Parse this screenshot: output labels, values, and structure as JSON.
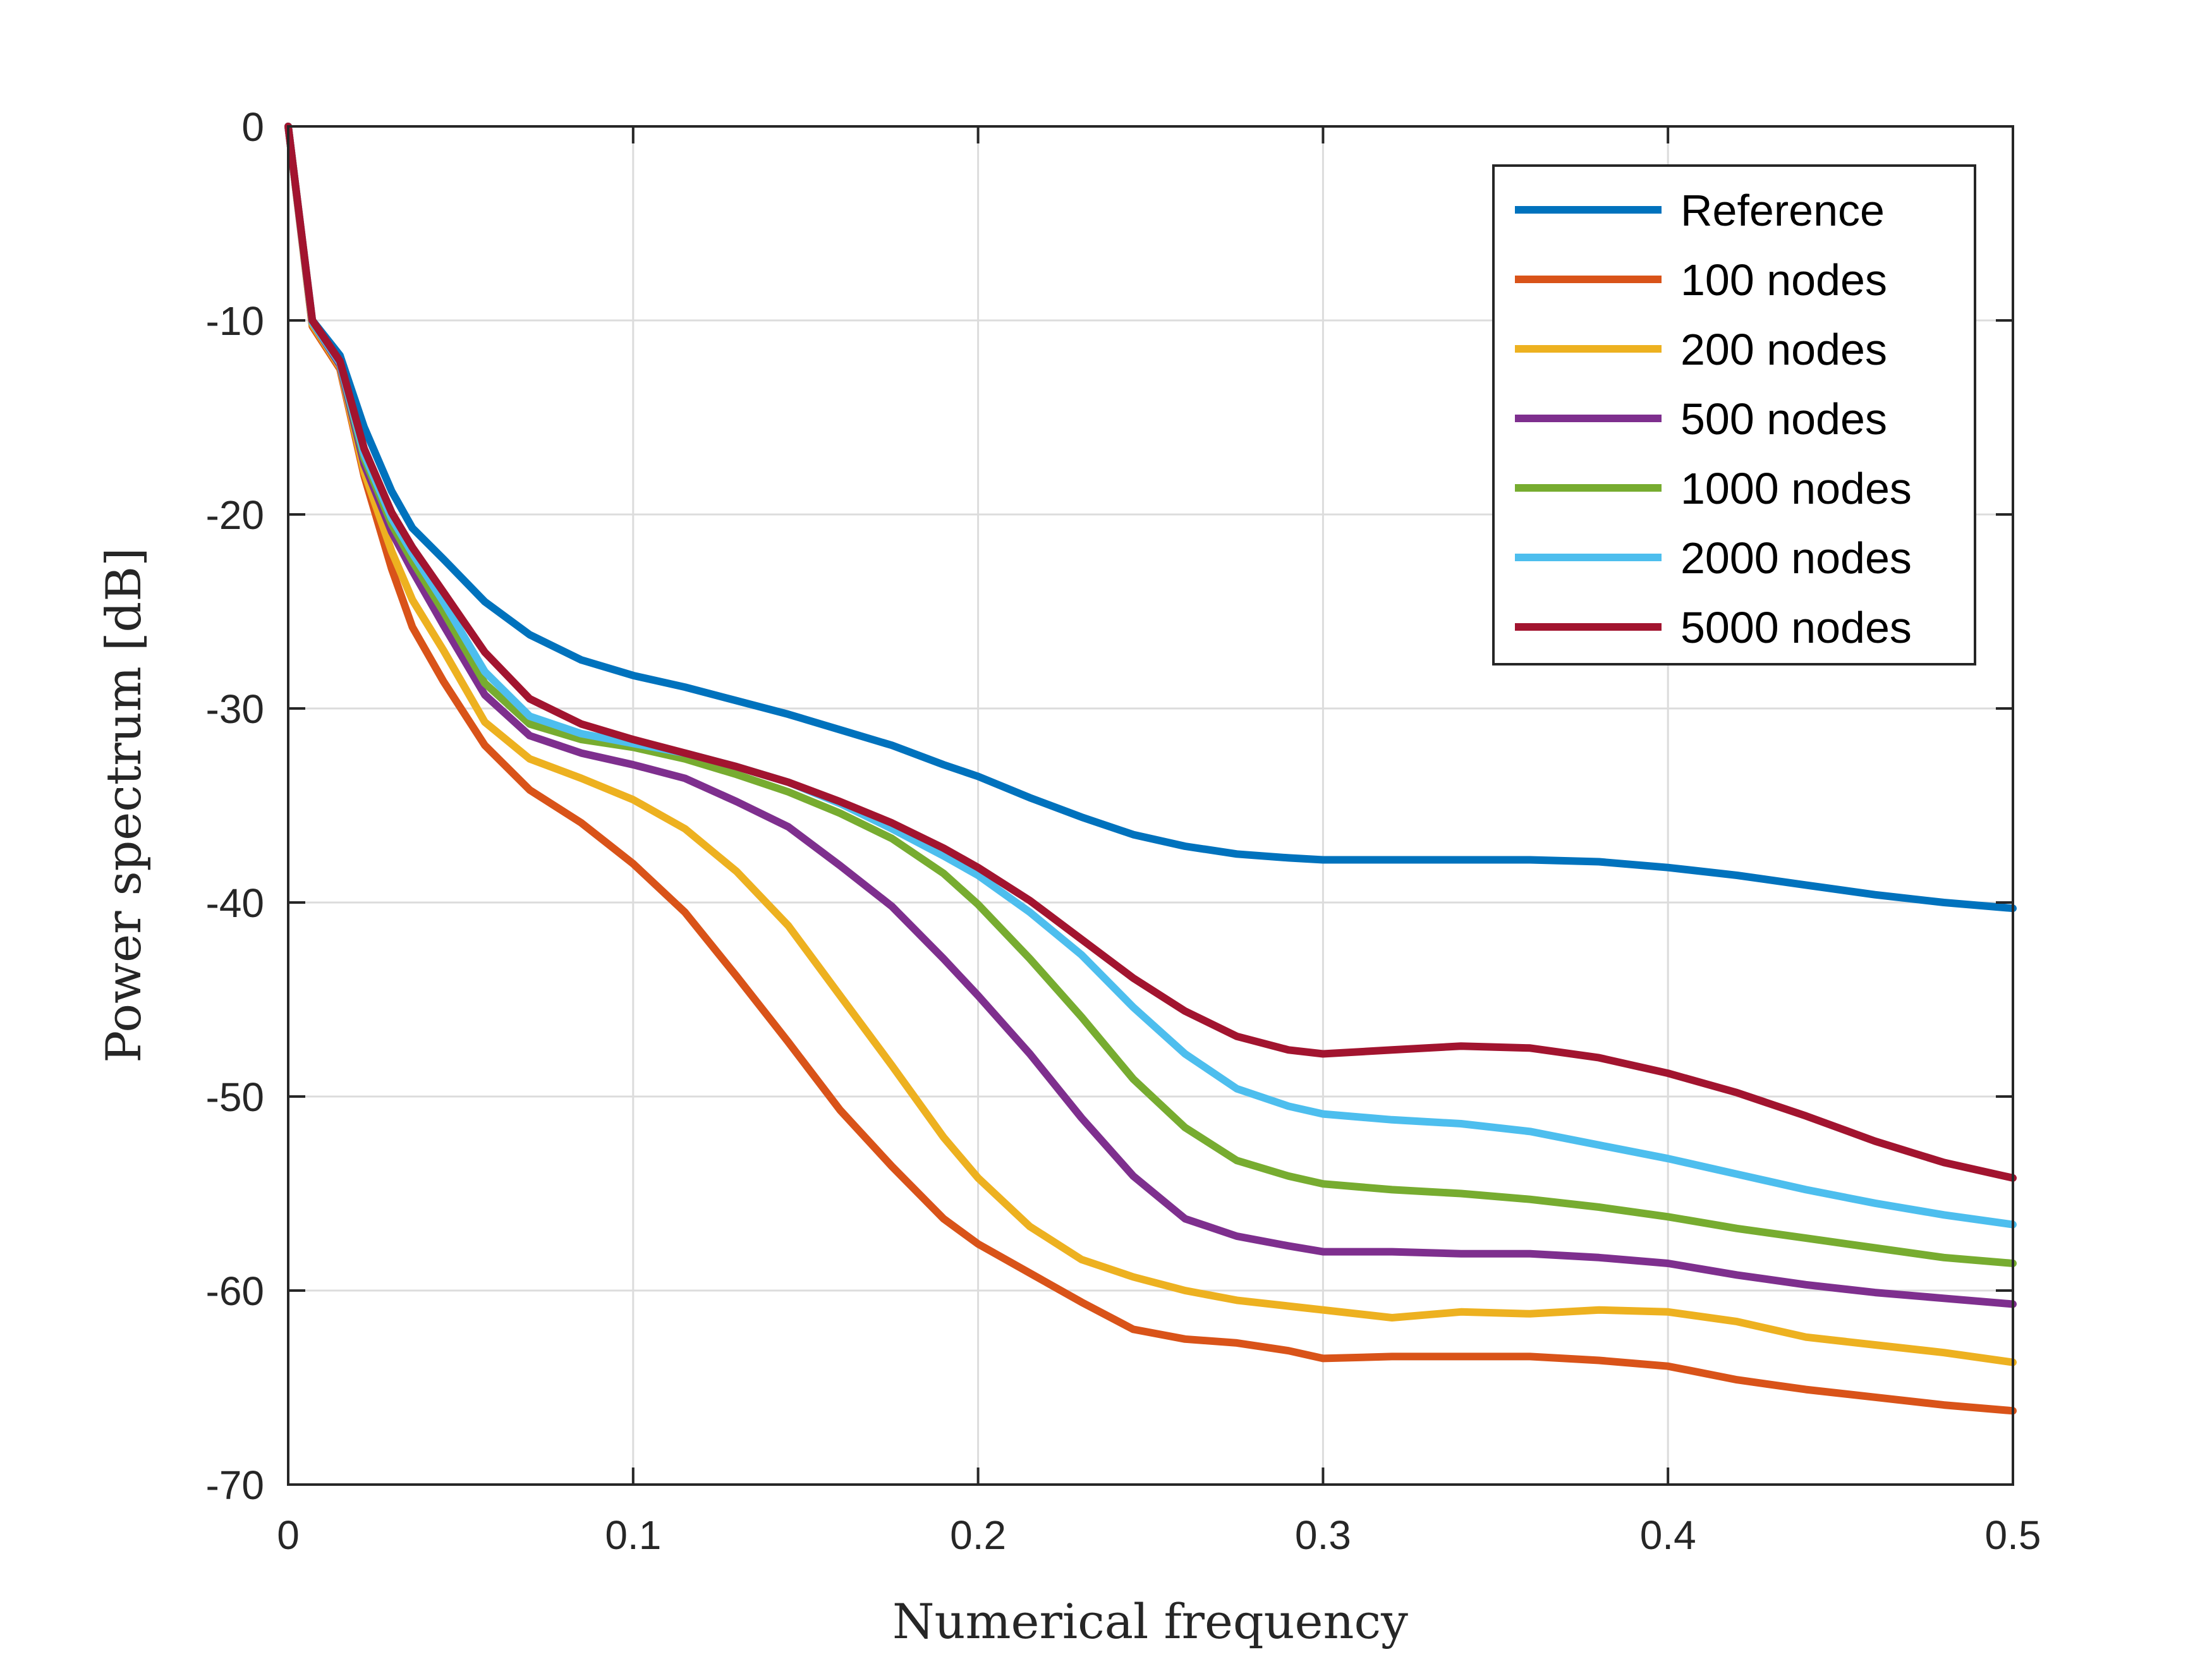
{
  "chart_data": {
    "type": "line",
    "title": "",
    "xlabel": "Numerical frequency",
    "ylabel": "Power spectrum [dB]",
    "xlim": [
      0,
      0.5
    ],
    "ylim": [
      -70,
      0
    ],
    "xticks": [
      0,
      0.1,
      0.2,
      0.3,
      0.4,
      0.5
    ],
    "xtick_labels": [
      "0",
      "0.1",
      "0.2",
      "0.3",
      "0.4",
      "0.5"
    ],
    "yticks": [
      0,
      -10,
      -20,
      -30,
      -40,
      -50,
      -60,
      -70
    ],
    "ytick_labels": [
      "0",
      "-10",
      "-20",
      "-30",
      "-40",
      "-50",
      "-60",
      "-70"
    ],
    "grid": true,
    "legend_position": "top-right",
    "x": [
      0,
      0.007,
      0.015,
      0.022,
      0.03,
      0.036,
      0.045,
      0.057,
      0.07,
      0.085,
      0.1,
      0.115,
      0.13,
      0.145,
      0.16,
      0.175,
      0.19,
      0.2,
      0.215,
      0.23,
      0.245,
      0.26,
      0.275,
      0.29,
      0.3,
      0.32,
      0.34,
      0.36,
      0.38,
      0.4,
      0.42,
      0.44,
      0.46,
      0.48,
      0.5
    ],
    "series": [
      {
        "name": "Reference",
        "color": "#0072BD",
        "values": [
          0,
          -10,
          -11.8,
          -15.5,
          -18.8,
          -20.7,
          -22.3,
          -24.5,
          -26.2,
          -27.5,
          -28.3,
          -28.9,
          -29.6,
          -30.3,
          -31.1,
          -31.9,
          -32.9,
          -33.5,
          -34.6,
          -35.6,
          -36.5,
          -37.1,
          -37.5,
          -37.7,
          -37.8,
          -37.8,
          -37.8,
          -37.8,
          -37.9,
          -38.2,
          -38.6,
          -39.1,
          -39.6,
          -40,
          -40.3
        ]
      },
      {
        "name": "100 nodes",
        "color": "#D95319",
        "values": [
          0,
          -10.3,
          -12.5,
          -18,
          -22.8,
          -25.8,
          -28.6,
          -31.9,
          -34.2,
          -35.9,
          -38,
          -40.5,
          -43.8,
          -47.2,
          -50.7,
          -53.6,
          -56.3,
          -57.6,
          -59.1,
          -60.6,
          -62,
          -62.5,
          -62.7,
          -63.1,
          -63.5,
          -63.4,
          -63.4,
          -63.4,
          -63.6,
          -63.9,
          -64.6,
          -65.1,
          -65.5,
          -65.9,
          -66.2
        ]
      },
      {
        "name": "200 nodes",
        "color": "#EDB120",
        "values": [
          0,
          -10.2,
          -12.4,
          -17.8,
          -21.9,
          -24.4,
          -27,
          -30.7,
          -32.6,
          -33.6,
          -34.7,
          -36.2,
          -38.4,
          -41.2,
          -44.8,
          -48.4,
          -52.1,
          -54.2,
          -56.7,
          -58.4,
          -59.3,
          -60,
          -60.5,
          -60.8,
          -61,
          -61.4,
          -61.1,
          -61.2,
          -61,
          -61.1,
          -61.6,
          -62.4,
          -62.8,
          -63.2,
          -63.7
        ]
      },
      {
        "name": "500 nodes",
        "color": "#7E2F8E",
        "values": [
          0,
          -10.1,
          -12.3,
          -17.4,
          -20.9,
          -22.9,
          -25.7,
          -29.3,
          -31.4,
          -32.3,
          -32.9,
          -33.6,
          -34.8,
          -36.1,
          -38.1,
          -40.2,
          -42.9,
          -44.8,
          -47.8,
          -51.1,
          -54.1,
          -56.3,
          -57.2,
          -57.7,
          -58,
          -58,
          -58.1,
          -58.1,
          -58.3,
          -58.6,
          -59.2,
          -59.7,
          -60.1,
          -60.4,
          -60.7
        ]
      },
      {
        "name": "1000 nodes",
        "color": "#77AC30",
        "values": [
          0,
          -10.1,
          -12.2,
          -17.1,
          -20.5,
          -22.4,
          -25,
          -28.7,
          -30.8,
          -31.6,
          -32,
          -32.6,
          -33.4,
          -34.3,
          -35.4,
          -36.7,
          -38.5,
          -40.1,
          -42.9,
          -45.9,
          -49.1,
          -51.6,
          -53.3,
          -54.1,
          -54.5,
          -54.8,
          -55,
          -55.3,
          -55.7,
          -56.2,
          -56.8,
          -57.3,
          -57.8,
          -58.3,
          -58.6
        ]
      },
      {
        "name": "2000 nodes",
        "color": "#4DBEEE",
        "values": [
          0,
          -10.1,
          -12.2,
          -16.9,
          -20.2,
          -22,
          -24.5,
          -28.1,
          -30.4,
          -31.3,
          -31.8,
          -32.3,
          -33,
          -33.8,
          -34.9,
          -36.2,
          -37.6,
          -38.6,
          -40.5,
          -42.7,
          -45.4,
          -47.8,
          -49.6,
          -50.5,
          -50.9,
          -51.2,
          -51.4,
          -51.8,
          -52.5,
          -53.2,
          -54,
          -54.8,
          -55.5,
          -56.1,
          -56.6
        ]
      },
      {
        "name": "5000 nodes",
        "color": "#A2142F",
        "values": [
          0,
          -10,
          -12.1,
          -16.6,
          -19.9,
          -21.7,
          -24,
          -27.1,
          -29.5,
          -30.8,
          -31.6,
          -32.3,
          -33,
          -33.8,
          -34.8,
          -35.9,
          -37.2,
          -38.2,
          -39.9,
          -41.9,
          -43.9,
          -45.6,
          -46.9,
          -47.6,
          -47.8,
          -47.6,
          -47.4,
          -47.5,
          -48,
          -48.8,
          -49.8,
          -51,
          -52.3,
          -53.4,
          -54.2
        ]
      }
    ]
  }
}
